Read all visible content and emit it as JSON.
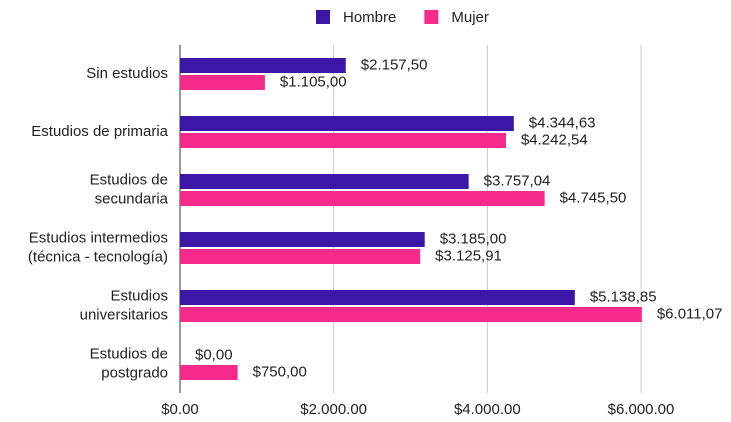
{
  "chart_data": {
    "type": "hbar",
    "categories": [
      [
        "Sin estudios"
      ],
      [
        "Estudios de primaria"
      ],
      [
        "Estudios de",
        "secundaria"
      ],
      [
        "Estudios intermedios",
        "(técnica - tecnología)"
      ],
      [
        "Estudios",
        "universitarios"
      ],
      [
        "Estudios de",
        "postgrado"
      ]
    ],
    "series": [
      {
        "name": "Hombre",
        "color": "#3c16a6",
        "values": [
          2157.5,
          4344.63,
          3757.04,
          3185.0,
          5138.85,
          0.0
        ],
        "value_labels": [
          "$2.157,50",
          "$4.344,63",
          "$3.757,04",
          "$3.185,00",
          "$5.138,85",
          "$0,00"
        ]
      },
      {
        "name": "Mujer",
        "color": "#f52a8a",
        "values": [
          1105.0,
          4242.54,
          4745.5,
          3125.91,
          6011.07,
          750.0
        ],
        "value_labels": [
          "$1.105,00",
          "$4.242,54",
          "$4.745,50",
          "$3.125,91",
          "$6.011,07",
          "$750,00"
        ]
      }
    ],
    "xlim": [
      0,
      6000
    ],
    "xticks": [
      {
        "value": 0,
        "label": "$0.00"
      },
      {
        "value": 2000,
        "label": "$2.000.00"
      },
      {
        "value": 4000,
        "label": "$4.000.00"
      },
      {
        "value": 6000,
        "label": "$6.000.00"
      }
    ],
    "grid": true,
    "legend": "top"
  }
}
